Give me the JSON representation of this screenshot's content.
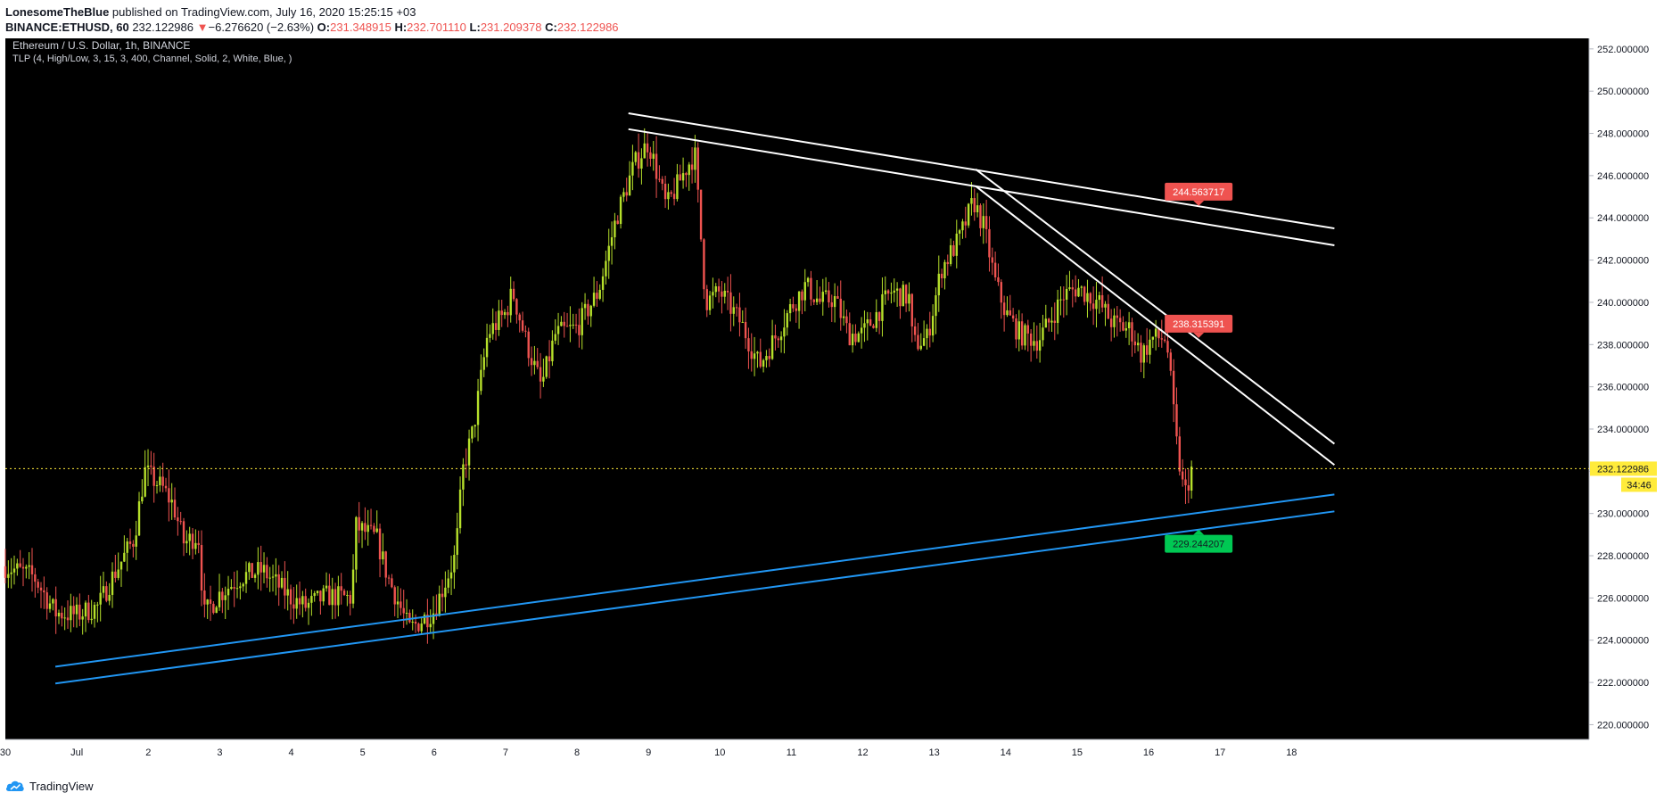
{
  "header": {
    "author": "LonesomeTheBlue",
    "published": "published on TradingView.com, July 16, 2020 15:25:15 +03",
    "symbol": "BINANCE:ETHUSD, 60",
    "last_price": "232.122986",
    "change_arrow": "▼",
    "change": "−6.276620 (−2.63%)",
    "o_label": "O:",
    "o_value": "231.348915",
    "h_label": "H:",
    "h_value": "232.701110",
    "l_label": "L:",
    "l_value": "231.209378",
    "c_label": "C:",
    "c_value": "232.122986"
  },
  "footer": {
    "brand": "TradingView",
    "logo_icon": "tradingview-cloud-icon"
  },
  "colors": {
    "up": "#b6e02b",
    "down": "#ef5350",
    "white_line": "#ffffff",
    "blue_line": "#2196f3",
    "current": "#ffeb3b",
    "bull_label": "#00c853",
    "bear_label": "#ef5350"
  },
  "chart_data": {
    "type": "candlestick",
    "title": "Ethereum / U.S. Dollar, 1h, BINANCE",
    "subtitle": "TLP (4, High/Low, 3, 15, 3, 400, Channel, Solid, 2, White, Blue, )",
    "x_ticks": [
      "30",
      "Jul",
      "2",
      "3",
      "4",
      "5",
      "6",
      "7",
      "8",
      "9",
      "10",
      "11",
      "12",
      "13",
      "14",
      "15",
      "16",
      "17",
      "18"
    ],
    "x_tick_days": [
      0,
      1,
      2,
      3,
      4,
      5,
      6,
      7,
      8,
      9,
      10,
      11,
      12,
      13,
      14,
      15,
      16,
      17,
      18
    ],
    "y_ticks": [
      "220.000000",
      "222.000000",
      "224.000000",
      "226.000000",
      "228.000000",
      "230.000000",
      "232.000000",
      "234.000000",
      "236.000000",
      "238.000000",
      "240.000000",
      "242.000000",
      "244.000000",
      "246.000000",
      "248.000000",
      "250.000000",
      "252.000000"
    ],
    "ylim": [
      219.3,
      252.5
    ],
    "xlim": [
      0,
      18.62
    ],
    "price_path": [
      [
        0.0,
        227.5
      ],
      [
        0.4,
        227.0
      ],
      [
        0.7,
        225.3
      ],
      [
        1.0,
        225.2
      ],
      [
        1.3,
        225.6
      ],
      [
        1.5,
        227.0
      ],
      [
        1.8,
        228.8
      ],
      [
        1.95,
        232.0
      ],
      [
        2.2,
        231.2
      ],
      [
        2.35,
        230.4
      ],
      [
        2.5,
        228.6
      ],
      [
        2.7,
        229.0
      ],
      [
        2.78,
        225.2
      ],
      [
        3.0,
        226.2
      ],
      [
        3.3,
        227.0
      ],
      [
        3.6,
        227.3
      ],
      [
        4.0,
        226.0
      ],
      [
        4.2,
        225.6
      ],
      [
        4.5,
        226.1
      ],
      [
        4.85,
        226.0
      ],
      [
        4.9,
        229.4
      ],
      [
        5.2,
        228.8
      ],
      [
        5.35,
        227.0
      ],
      [
        5.5,
        225.8
      ],
      [
        5.65,
        224.5
      ],
      [
        6.0,
        225.4
      ],
      [
        6.3,
        228.0
      ],
      [
        6.4,
        232.0
      ],
      [
        6.55,
        234.0
      ],
      [
        6.75,
        238.5
      ],
      [
        7.0,
        239.5
      ],
      [
        7.1,
        240.5
      ],
      [
        7.3,
        238.0
      ],
      [
        7.5,
        236.0
      ],
      [
        7.7,
        238.5
      ],
      [
        8.0,
        238.8
      ],
      [
        8.3,
        240.5
      ],
      [
        8.55,
        244.0
      ],
      [
        8.8,
        246.5
      ],
      [
        9.0,
        247.6
      ],
      [
        9.25,
        244.5
      ],
      [
        9.4,
        245.5
      ],
      [
        9.55,
        246.5
      ],
      [
        9.65,
        247.0
      ],
      [
        9.8,
        240.0
      ],
      [
        10.0,
        240.5
      ],
      [
        10.3,
        239.0
      ],
      [
        10.55,
        237.0
      ],
      [
        10.8,
        238.5
      ],
      [
        11.0,
        239.8
      ],
      [
        11.2,
        240.8
      ],
      [
        11.4,
        240.0
      ],
      [
        11.6,
        240.2
      ],
      [
        11.8,
        238.5
      ],
      [
        12.0,
        238.5
      ],
      [
        12.2,
        239.5
      ],
      [
        12.4,
        240.5
      ],
      [
        12.65,
        240.2
      ],
      [
        12.7,
        238.0
      ],
      [
        12.9,
        238.3
      ],
      [
        13.1,
        241.6
      ],
      [
        13.35,
        243.0
      ],
      [
        13.55,
        244.8
      ],
      [
        13.7,
        243.5
      ],
      [
        13.85,
        241.0
      ],
      [
        14.0,
        239.5
      ],
      [
        14.2,
        238.5
      ],
      [
        14.45,
        238.2
      ],
      [
        14.6,
        239.0
      ],
      [
        14.8,
        240.3
      ],
      [
        15.0,
        240.7
      ],
      [
        15.3,
        240.0
      ],
      [
        15.5,
        239.0
      ],
      [
        15.75,
        238.7
      ],
      [
        15.9,
        237.5
      ],
      [
        16.05,
        238.3
      ],
      [
        16.25,
        238.3
      ],
      [
        16.4,
        233.0
      ],
      [
        16.5,
        230.8
      ],
      [
        16.6,
        232.1
      ]
    ],
    "candles_hourly": 400,
    "current_price": 232.122986,
    "countdown": "34:46",
    "lines": [
      {
        "name": "upper-channel-top",
        "color": "white",
        "x1": 8.72,
        "y1": 248.95,
        "x2": 18.6,
        "y2": 243.5
      },
      {
        "name": "upper-channel-bottom",
        "color": "white",
        "x1": 8.72,
        "y1": 248.2,
        "x2": 18.6,
        "y2": 242.7
      },
      {
        "name": "steep-line-top",
        "color": "white",
        "x1": 13.58,
        "y1": 246.3,
        "x2": 18.6,
        "y2": 233.3
      },
      {
        "name": "steep-line-bottom",
        "color": "white",
        "x1": 13.58,
        "y1": 245.5,
        "x2": 18.6,
        "y2": 232.3
      },
      {
        "name": "lower-channel-top",
        "color": "blue",
        "x1": 0.7,
        "y1": 222.75,
        "x2": 18.6,
        "y2": 230.9
      },
      {
        "name": "lower-channel-bottom",
        "color": "blue",
        "x1": 0.7,
        "y1": 221.95,
        "x2": 18.6,
        "y2": 230.1
      }
    ],
    "labels": [
      {
        "text": "244.563717",
        "kind": "bear",
        "x": 16.7,
        "price": 244.563717
      },
      {
        "text": "238.315391",
        "kind": "bear",
        "x": 16.7,
        "price": 238.315391
      },
      {
        "text": "229.244207",
        "kind": "bull",
        "x": 16.7,
        "price": 229.244207
      }
    ]
  }
}
